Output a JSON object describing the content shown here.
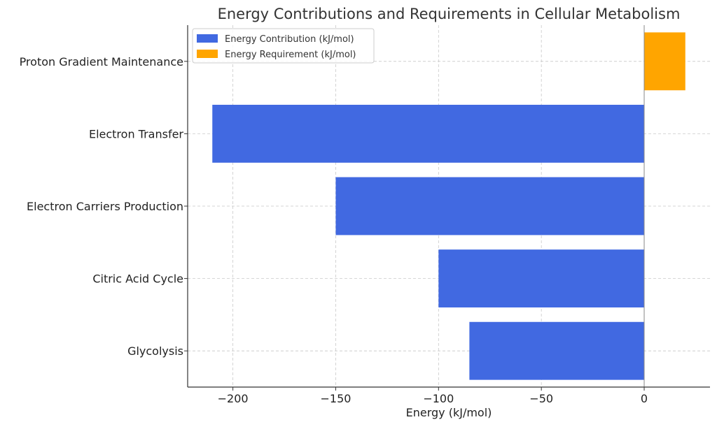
{
  "chart_data": {
    "type": "bar",
    "orientation": "horizontal",
    "title": "Energy Contributions and Requirements in Cellular Metabolism",
    "xlabel": "Energy (kJ/mol)",
    "ylabel": "",
    "categories": [
      "Glycolysis",
      "Citric Acid Cycle",
      "Electron Carriers Production",
      "Electron Transfer",
      "Proton Gradient Maintenance"
    ],
    "series": [
      {
        "name": "Energy Contribution (kJ/mol)",
        "color": "#4169E1",
        "values": [
          -85,
          -100,
          -150,
          -210,
          0
        ]
      },
      {
        "name": "Energy Requirement (kJ/mol)",
        "color": "#FFA500",
        "values": [
          0,
          0,
          0,
          0,
          20
        ]
      }
    ],
    "xticks": [
      -200,
      -150,
      -100,
      -50,
      0
    ],
    "xtick_labels": [
      "−200",
      "−150",
      "−100",
      "−50",
      "0"
    ],
    "xlim": [
      -222,
      32
    ],
    "grid": true,
    "legend_position": "top-left"
  }
}
